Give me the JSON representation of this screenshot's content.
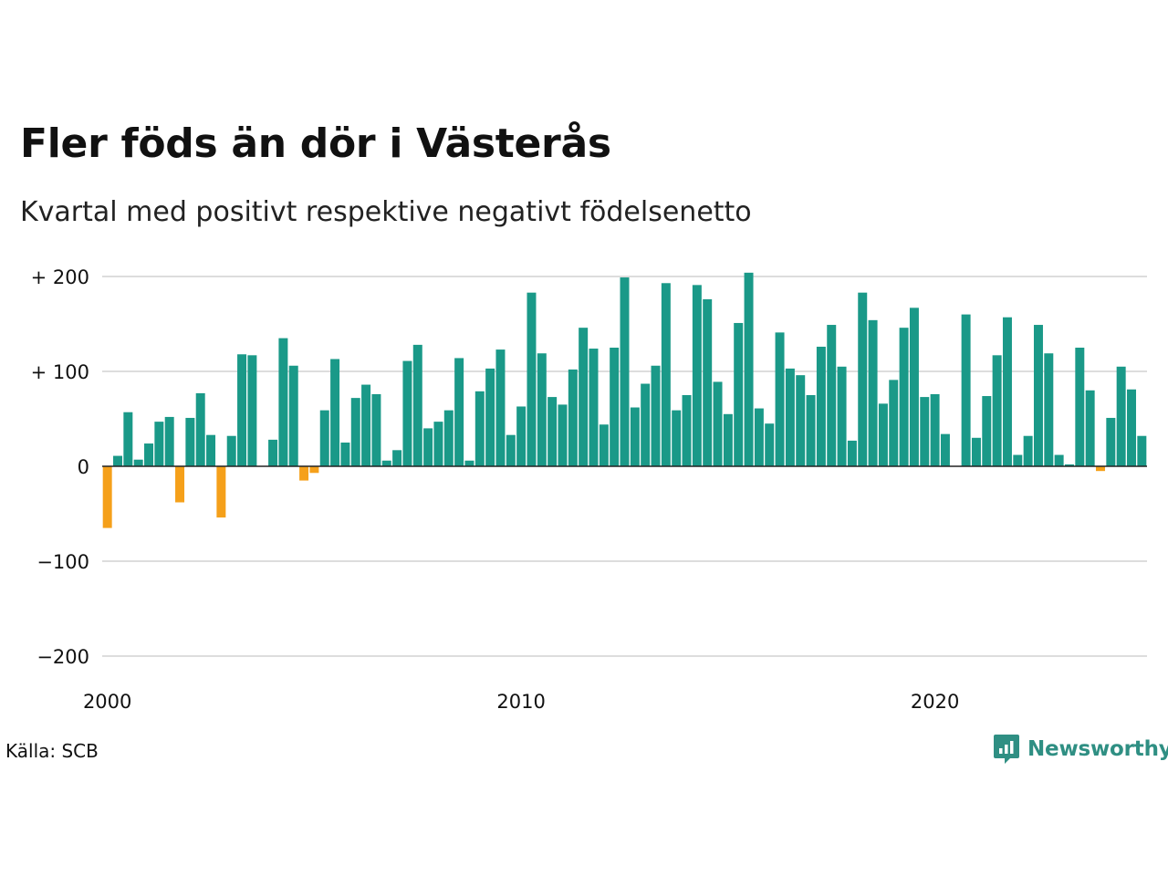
{
  "title": "Fler föds än dör i Västerås",
  "subtitle": "Kvartal med positivt respektive negativt födelsenetto",
  "source": "Källa: SCB",
  "brand": "Newsworthy",
  "colors": {
    "positive": "#1a9988",
    "negative": "#f5a01a",
    "brand": "#2f8f83",
    "grid": "#dddddd",
    "baseline": "#222222"
  },
  "chart_data": {
    "type": "bar",
    "x_start_year": 2000,
    "periods_per_year": 4,
    "ylim": [
      -200,
      200
    ],
    "yticks": [
      {
        "value": 200,
        "label": "+ 200"
      },
      {
        "value": 100,
        "label": "+ 100"
      },
      {
        "value": 0,
        "label": "0"
      },
      {
        "value": -100,
        "label": "−100"
      },
      {
        "value": -200,
        "label": "−200"
      }
    ],
    "xticks": [
      {
        "value": 2000,
        "label": "2000"
      },
      {
        "value": 2010,
        "label": "2010"
      },
      {
        "value": 2020,
        "label": "2020"
      }
    ],
    "grid": true,
    "values": [
      -65,
      11,
      57,
      7,
      24,
      47,
      52,
      -38,
      51,
      77,
      33,
      -54,
      32,
      118,
      117,
      0,
      28,
      135,
      106,
      -15,
      -7,
      59,
      113,
      25,
      72,
      86,
      76,
      6,
      17,
      111,
      128,
      40,
      47,
      59,
      114,
      6,
      79,
      103,
      123,
      33,
      63,
      183,
      119,
      73,
      65,
      102,
      146,
      124,
      44,
      125,
      199,
      62,
      87,
      106,
      193,
      59,
      75,
      191,
      176,
      89,
      55,
      151,
      204,
      61,
      45,
      141,
      103,
      96,
      75,
      126,
      149,
      105,
      27,
      183,
      154,
      66,
      91,
      146,
      167,
      73,
      76,
      34,
      0,
      160,
      30,
      74,
      117,
      157,
      12,
      32,
      149,
      119,
      12,
      2,
      125,
      80,
      -5,
      51,
      105,
      81,
      32
    ]
  }
}
